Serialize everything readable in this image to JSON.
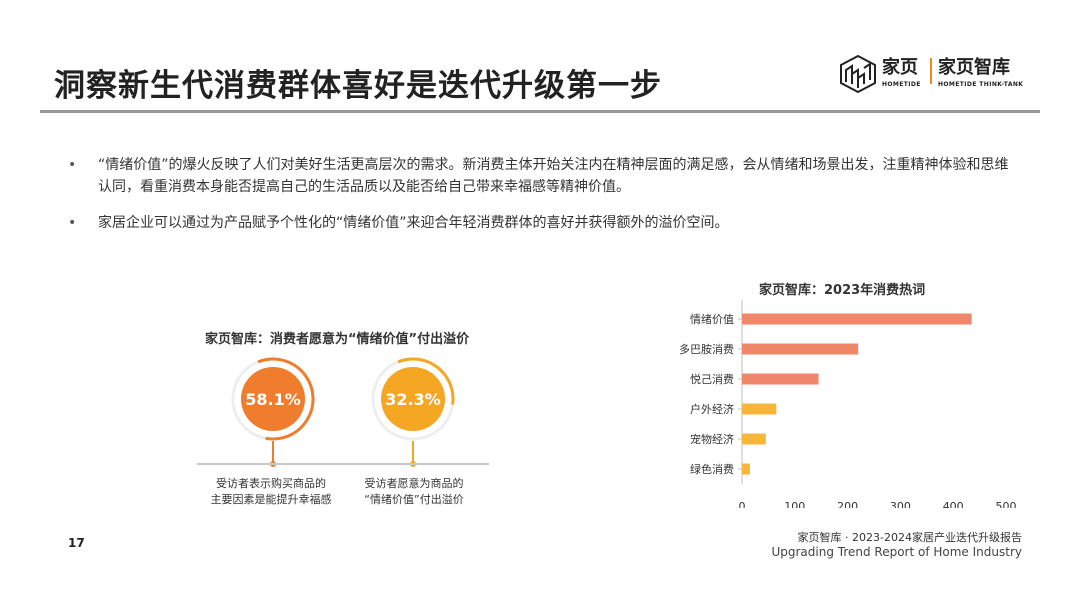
{
  "page": {
    "title": "洞察新生代消费群体喜好是迭代升级第一步",
    "page_number": "17"
  },
  "logo": {
    "brand_cn": "家页",
    "brand_en": "HOMETIDE",
    "tank_cn": "家页智库",
    "tank_en": "HOMETIDE THINK-TANK"
  },
  "bullets": [
    {
      "marker": "•",
      "text": "“情绪价值”的爆火反映了人们对美好生活更高层次的需求。新消费主体开始关注内在精神层面的满足感，会从情绪和场景出发，注重精神体验和思维认同，看重消费本身能否提高自己的生活品质以及能否给自己带来幸福感等精神价值。"
    },
    {
      "marker": "•",
      "text": "家居企业可以通过为产品赋予个性化的“情绪价值”来迎合年轻消费群体的喜好并获得额外的溢价空间。"
    }
  ],
  "left_panel": {
    "title": "家页智库：消费者愿意为“情绪价值”付出溢价",
    "items": [
      {
        "value_label": "58.1%",
        "value": 58.1,
        "color": "#ef7d2d",
        "caption_line1": "受访者表示购买商品的",
        "caption_line2": "主要因素是能提升幸福感"
      },
      {
        "value_label": "32.3%",
        "value": 32.3,
        "color": "#f5a623",
        "caption_line1": "受访者愿意为商品的",
        "caption_line2": "“情绪价值”付出溢价"
      }
    ]
  },
  "chart_data": {
    "type": "bar",
    "orientation": "horizontal",
    "title": "家页智库：2023年消费热词",
    "categories": [
      "情绪价值",
      "多巴胺消费",
      "悦己消费",
      "户外经济",
      "宠物经济",
      "绿色消费"
    ],
    "series": [
      {
        "values": [
          435,
          220,
          145,
          65,
          45,
          15
        ],
        "colors": [
          "#f0876a",
          "#f0876a",
          "#f0876a",
          "#f7b53c",
          "#f7b53c",
          "#f7b53c"
        ]
      }
    ],
    "xlim": [
      0,
      500
    ],
    "xticks": [
      0,
      100,
      200,
      300,
      400,
      500
    ],
    "grid": false
  },
  "footer": {
    "cn": "家页智库 · 2023-2024家居产业迭代升级报告",
    "en": "Upgrading Trend Report of Home Industry"
  }
}
